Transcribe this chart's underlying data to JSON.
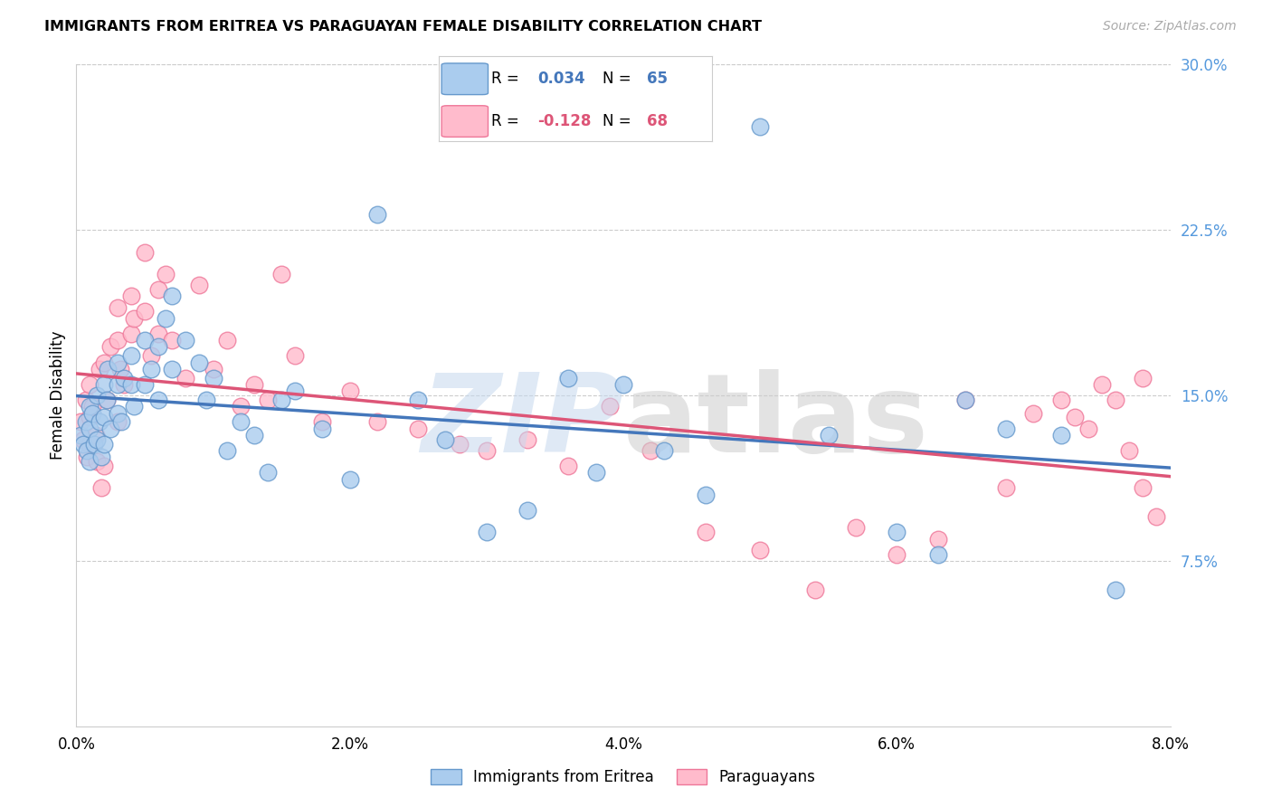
{
  "title": "IMMIGRANTS FROM ERITREA VS PARAGUAYAN FEMALE DISABILITY CORRELATION CHART",
  "source": "Source: ZipAtlas.com",
  "ylabel": "Female Disability",
  "xlim": [
    0.0,
    0.08
  ],
  "ylim": [
    0.0,
    0.3
  ],
  "xticks": [
    0.0,
    0.02,
    0.04,
    0.06,
    0.08
  ],
  "xtick_labels": [
    "0.0%",
    "2.0%",
    "4.0%",
    "6.0%",
    "8.0%"
  ],
  "ytick_positions": [
    0.075,
    0.15,
    0.225,
    0.3
  ],
  "ytick_labels": [
    "7.5%",
    "15.0%",
    "22.5%",
    "30.0%"
  ],
  "blue_color": "#aaccee",
  "blue_edge_color": "#6699cc",
  "blue_line_color": "#4477bb",
  "pink_color": "#ffbbcc",
  "pink_edge_color": "#ee7799",
  "pink_line_color": "#dd5577",
  "ytick_color": "#5599dd",
  "legend_label_blue": "Immigrants from Eritrea",
  "legend_label_pink": "Paraguayans",
  "blue_x": [
    0.0003,
    0.0005,
    0.0007,
    0.0008,
    0.001,
    0.001,
    0.001,
    0.0012,
    0.0013,
    0.0015,
    0.0015,
    0.0017,
    0.0018,
    0.002,
    0.002,
    0.002,
    0.0022,
    0.0023,
    0.0025,
    0.003,
    0.003,
    0.003,
    0.0033,
    0.0035,
    0.004,
    0.004,
    0.0042,
    0.005,
    0.005,
    0.0055,
    0.006,
    0.006,
    0.0065,
    0.007,
    0.007,
    0.008,
    0.009,
    0.0095,
    0.01,
    0.011,
    0.012,
    0.013,
    0.014,
    0.015,
    0.016,
    0.018,
    0.02,
    0.022,
    0.025,
    0.027,
    0.03,
    0.033,
    0.036,
    0.038,
    0.04,
    0.043,
    0.046,
    0.05,
    0.055,
    0.06,
    0.063,
    0.065,
    0.068,
    0.072,
    0.076
  ],
  "blue_y": [
    0.132,
    0.128,
    0.138,
    0.125,
    0.145,
    0.135,
    0.12,
    0.142,
    0.128,
    0.15,
    0.13,
    0.138,
    0.122,
    0.155,
    0.14,
    0.128,
    0.148,
    0.162,
    0.135,
    0.155,
    0.165,
    0.142,
    0.138,
    0.158,
    0.168,
    0.155,
    0.145,
    0.175,
    0.155,
    0.162,
    0.172,
    0.148,
    0.185,
    0.195,
    0.162,
    0.175,
    0.165,
    0.148,
    0.158,
    0.125,
    0.138,
    0.132,
    0.115,
    0.148,
    0.152,
    0.135,
    0.112,
    0.232,
    0.148,
    0.13,
    0.088,
    0.098,
    0.158,
    0.115,
    0.155,
    0.125,
    0.105,
    0.272,
    0.132,
    0.088,
    0.078,
    0.148,
    0.135,
    0.132,
    0.062
  ],
  "pink_x": [
    0.0003,
    0.0005,
    0.0007,
    0.0008,
    0.001,
    0.001,
    0.001,
    0.0012,
    0.0014,
    0.0015,
    0.0017,
    0.0018,
    0.002,
    0.002,
    0.0022,
    0.0025,
    0.003,
    0.003,
    0.003,
    0.0032,
    0.0035,
    0.004,
    0.004,
    0.0042,
    0.005,
    0.005,
    0.0055,
    0.006,
    0.006,
    0.0065,
    0.007,
    0.008,
    0.009,
    0.01,
    0.011,
    0.012,
    0.013,
    0.014,
    0.015,
    0.016,
    0.018,
    0.02,
    0.022,
    0.025,
    0.028,
    0.03,
    0.033,
    0.036,
    0.039,
    0.042,
    0.046,
    0.05,
    0.054,
    0.057,
    0.06,
    0.063,
    0.065,
    0.068,
    0.07,
    0.072,
    0.073,
    0.074,
    0.075,
    0.076,
    0.077,
    0.078,
    0.078,
    0.079
  ],
  "pink_y": [
    0.138,
    0.13,
    0.148,
    0.122,
    0.155,
    0.14,
    0.128,
    0.145,
    0.132,
    0.12,
    0.162,
    0.108,
    0.165,
    0.118,
    0.148,
    0.172,
    0.19,
    0.175,
    0.138,
    0.162,
    0.155,
    0.178,
    0.195,
    0.185,
    0.188,
    0.215,
    0.168,
    0.198,
    0.178,
    0.205,
    0.175,
    0.158,
    0.2,
    0.162,
    0.175,
    0.145,
    0.155,
    0.148,
    0.205,
    0.168,
    0.138,
    0.152,
    0.138,
    0.135,
    0.128,
    0.125,
    0.13,
    0.118,
    0.145,
    0.125,
    0.088,
    0.08,
    0.062,
    0.09,
    0.078,
    0.085,
    0.148,
    0.108,
    0.142,
    0.148,
    0.14,
    0.135,
    0.155,
    0.148,
    0.125,
    0.158,
    0.108,
    0.095
  ]
}
